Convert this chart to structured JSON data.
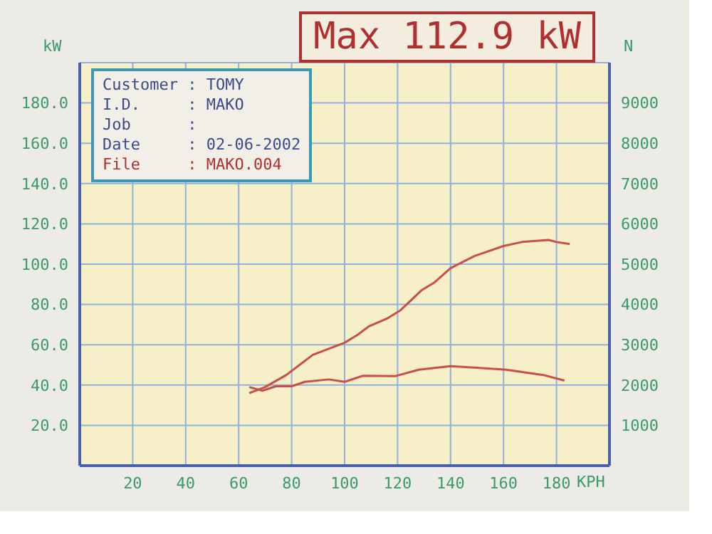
{
  "chart_data": {
    "type": "line",
    "title": "Max 112.9 kW",
    "xlabel": "KPH",
    "ylabel": "kW",
    "y2label": "N",
    "annotations": [
      "Customer : TOMY",
      "I.D.     : MAKO",
      "Job      :",
      "Date     : 02-06-2002",
      "File     : MAKO.004"
    ],
    "xlim": [
      0,
      200
    ],
    "xticks": [
      20,
      40,
      60,
      80,
      100,
      120,
      140,
      160,
      180
    ],
    "ylim": [
      0,
      200
    ],
    "yticks": [
      {
        "value": 20,
        "label": "20.0"
      },
      {
        "value": 40,
        "label": "40.0"
      },
      {
        "value": 60,
        "label": "60.0"
      },
      {
        "value": 80,
        "label": "80.0"
      },
      {
        "value": 100,
        "label": "100.0"
      },
      {
        "value": 120,
        "label": "120.0"
      },
      {
        "value": 140,
        "label": "140.0"
      },
      {
        "value": 160,
        "label": "160.0"
      },
      {
        "value": 180,
        "label": "180.0"
      }
    ],
    "y2lim": [
      0,
      10000
    ],
    "y2ticks": [
      1000,
      2000,
      3000,
      4000,
      5000,
      6000,
      7000,
      8000,
      9000
    ],
    "grid": true,
    "marker": "none",
    "line_style": "solid",
    "series": [
      {
        "color": "#c8504a",
        "x": [
          64,
          70,
          78,
          88,
          94,
          100,
          105,
          109,
          116,
          121,
          129,
          134,
          140,
          149,
          160,
          167,
          177,
          180,
          185
        ],
        "values": [
          36,
          39,
          45,
          55,
          58,
          61,
          65,
          69,
          73,
          77,
          87,
          91,
          98,
          104,
          109,
          111,
          112,
          111,
          110
        ]
      },
      {
        "color": "#c8504a",
        "axis": "y2",
        "x": [
          64,
          69,
          74,
          80,
          85,
          94,
          100,
          107,
          119,
          128,
          140,
          150,
          161,
          175,
          183
        ],
        "values": [
          1950,
          1860,
          1970,
          1970,
          2080,
          2140,
          2080,
          2230,
          2220,
          2380,
          2470,
          2430,
          2380,
          2250,
          2110
        ]
      }
    ]
  }
}
